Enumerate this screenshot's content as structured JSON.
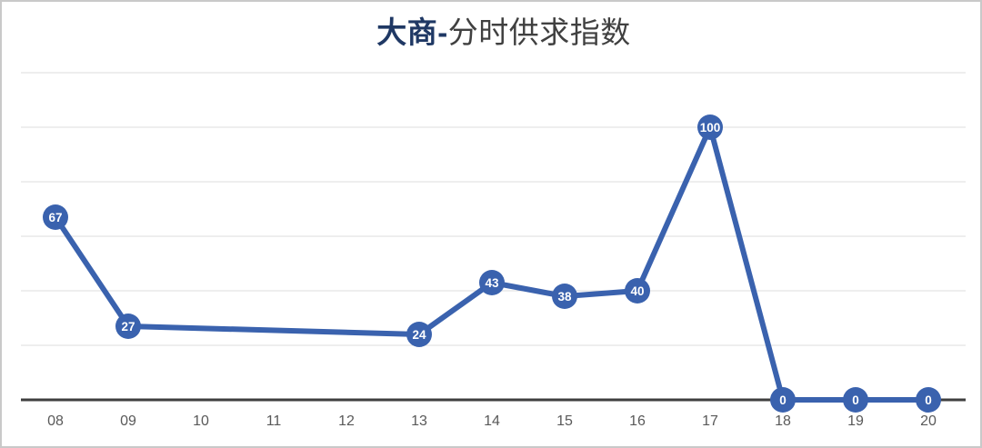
{
  "window": {
    "background": "#FFFFFF",
    "border_color": "#C9C9C9"
  },
  "chart_data": {
    "type": "line",
    "title": "大商-分时供求指数",
    "title_accent": "大商-",
    "title_rest": "分时供求指数",
    "categories": [
      "08",
      "09",
      "10",
      "11",
      "12",
      "13",
      "14",
      "15",
      "16",
      "17",
      "18",
      "19",
      "20"
    ],
    "series": [
      {
        "name": "分时供求指数",
        "values": [
          67,
          27,
          null,
          null,
          null,
          24,
          43,
          38,
          40,
          100,
          0,
          0,
          0
        ]
      }
    ],
    "data_labels": [
      67,
      27,
      null,
      null,
      null,
      24,
      43,
      38,
      40,
      100,
      0,
      0,
      0
    ],
    "xlabel": "",
    "ylabel": "",
    "ylim": [
      0,
      120
    ],
    "grid_step": 20,
    "grid": "horizontal",
    "legend": "none",
    "y_tick_labels": "hidden",
    "colors": {
      "line": "#3A62AE",
      "marker_fill": "#3A62AE",
      "marker_label": "#FFFFFF",
      "grid": "#DCDCDC",
      "axis": "#3F3F3F",
      "tick_label": "#595959",
      "title_accent": "#1F3864",
      "title_rest": "#404040",
      "frame": "#C9C9C9"
    }
  }
}
